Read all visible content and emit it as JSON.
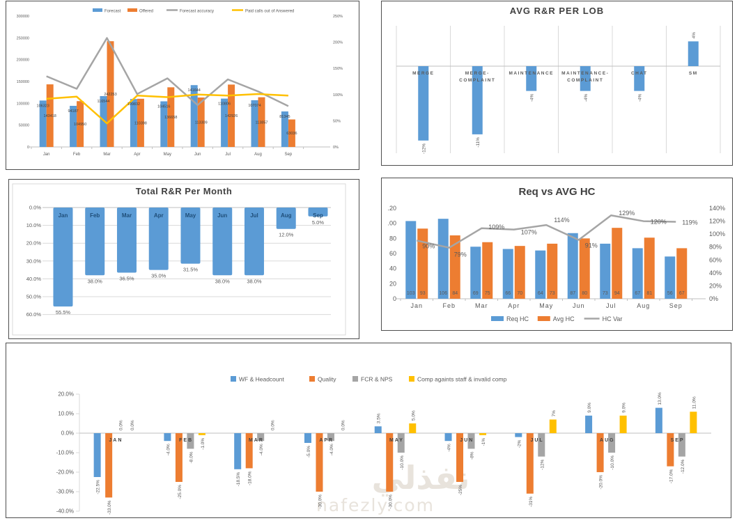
{
  "colors": {
    "blue": "#5B9BD5",
    "orange": "#ED7D31",
    "gray": "#A5A5A5",
    "yellow": "#FFC000",
    "axis_text": "#595959",
    "title_text": "#404040",
    "grid": "#D9D9D9",
    "zero_line": "#BFBFBF",
    "inner_border": "#D9D9D9",
    "month_label": "#1F4E79",
    "data_label": "#404040",
    "watermark": "#E8E3DC"
  },
  "watermark": {
    "arabic": "نفذلي",
    "latin": "nafezly.com"
  },
  "chart_data": [
    {
      "id": "forecast_offered",
      "type": "combo",
      "title": "",
      "legend_position": "top",
      "categories": [
        "Jan",
        "Feb",
        "Mar",
        "Apr",
        "May",
        "Jun",
        "Jul",
        "Aug",
        "Sep"
      ],
      "left_axis_ticks": [
        "0",
        "50000",
        "100000",
        "150000",
        "200000",
        "250000",
        "300000"
      ],
      "left_axis_max": 300000,
      "right_axis_ticks": [
        "0%",
        "50%",
        "100%",
        "150%",
        "200%",
        "250%"
      ],
      "right_axis_max": 250,
      "series": [
        {
          "name": "Forecast",
          "type": "bar",
          "color": "blue",
          "values": [
            106323,
            94187,
            116544,
            109832,
            104516,
            141644,
            110806,
            107074,
            81345
          ],
          "labels": [
            "106323",
            "94187",
            "116544",
            "109832",
            "104516",
            "141644",
            "110806",
            "107074",
            "81345"
          ]
        },
        {
          "name": "Offered",
          "type": "bar",
          "color": "orange",
          "values": [
            143418,
            104950,
            242253,
            110398,
            136658,
            113309,
            142926,
            113857,
            63036
          ],
          "labels": [
            "143418",
            "104950",
            "242253",
            "110398",
            "136658",
            "113309",
            "142926",
            "113857",
            "63036"
          ]
        },
        {
          "name": "Forecast accuracy",
          "type": "line",
          "color": "gray",
          "axis": "right",
          "values": [
            135,
            111,
            208,
            101,
            131,
            80,
            129,
            106,
            78
          ]
        },
        {
          "name": "Paid calls out of Answered",
          "type": "line",
          "color": "yellow",
          "axis": "right",
          "values": [
            92,
            96,
            45,
            98,
            95,
            100,
            98,
            101,
            98
          ]
        }
      ]
    },
    {
      "id": "avg_rr_per_lob",
      "type": "bar",
      "title": "AVG R&R PER LOB",
      "bar_color": "blue",
      "grid": "vertical",
      "ylim": [
        -14,
        7
      ],
      "categories": [
        "MERGE",
        "MERGE-COMPLAINT",
        "MAINTENANCE",
        "MAINTENANCE-COMPLAINT",
        "CHAT",
        "SM"
      ],
      "values": [
        -12,
        -11,
        -4,
        -4,
        -4,
        4
      ],
      "labels": [
        "-12%",
        "-11%",
        "-4%",
        "-4%",
        "-4%",
        "4%"
      ]
    },
    {
      "id": "total_rr_per_month",
      "type": "bar_inverted",
      "title": "Total R&R Per Month",
      "bar_color": "blue",
      "ylim": [
        0,
        60
      ],
      "y_ticks": [
        "0.0%",
        "10.0%",
        "20.0%",
        "30.0%",
        "40.0%",
        "50.0%",
        "60.0%"
      ],
      "categories": [
        "Jan",
        "Feb",
        "Mar",
        "Apr",
        "May",
        "Jun",
        "Jul",
        "Aug",
        "Sep"
      ],
      "values": [
        55.5,
        38.0,
        36.5,
        35.0,
        31.5,
        38.0,
        38.0,
        12.0,
        5.0
      ],
      "labels": [
        "55.5%",
        "38.0%",
        "36.5%",
        "35.0%",
        "31.5%",
        "38.0%",
        "38.0%",
        "12.0%",
        "5.0%"
      ]
    },
    {
      "id": "req_vs_avg_hc",
      "type": "combo",
      "title": "Req vs AVG HC",
      "legend_position": "bottom",
      "categories": [
        "Jan",
        "Feb",
        "Mar",
        "Apr",
        "May",
        "Jun",
        "Jul",
        "Aug",
        "Sep"
      ],
      "left_axis_ticks": [
        "0",
        "20",
        "40",
        "60",
        "80",
        ".00",
        ".20"
      ],
      "left_axis_max": 120,
      "right_axis_ticks": [
        "0%",
        "20%",
        "40%",
        "60%",
        "80%",
        "100%",
        "120%",
        "140%"
      ],
      "right_axis_max": 140,
      "series": [
        {
          "name": "Req HC",
          "type": "bar",
          "color": "blue",
          "values": [
            103,
            106,
            69,
            66,
            64,
            87,
            73,
            67,
            56
          ],
          "labels": [
            "103",
            "106",
            "69",
            "66",
            "64",
            "87",
            "73",
            "67",
            "56"
          ]
        },
        {
          "name": "Avg HC",
          "type": "bar",
          "color": "orange",
          "values": [
            93,
            84,
            75,
            70,
            73,
            80,
            94,
            81,
            67
          ],
          "labels": [
            "93",
            "84",
            "75",
            "70",
            "73",
            "80",
            "94",
            "81",
            "67"
          ]
        },
        {
          "name": "HC Var",
          "type": "line",
          "color": "gray",
          "axis": "right",
          "values": [
            90,
            79,
            109,
            107,
            114,
            91,
            129,
            120,
            119
          ],
          "labels": [
            "90%",
            "79%",
            "109%",
            "107%",
            "114%",
            "91%",
            "129%",
            "120%",
            "119%"
          ]
        }
      ]
    },
    {
      "id": "monthly_variance",
      "type": "grouped_bar",
      "title": "",
      "legend_position": "top",
      "ylim": [
        -40,
        20
      ],
      "y_ticks": [
        "20.0%",
        "10.0%",
        "0.0%",
        "-10.0%",
        "-20.0%",
        "-30.0%",
        "-40.0%"
      ],
      "categories": [
        "JAN",
        "FEB",
        "MAR",
        "APR",
        "MAY",
        "JUN",
        "JUL",
        "AUG",
        "SEP"
      ],
      "series": [
        {
          "name": "WF & Headcount",
          "color": "blue",
          "values": [
            -22.5,
            -4,
            -18.5,
            -5,
            3.5,
            -4,
            -2,
            9,
            13
          ],
          "labels": [
            "-22.5%",
            "-4.0%",
            "-18.5%",
            "-5.0%",
            "3.5%",
            "-4%",
            "-2%",
            "9.0%",
            "13.0%"
          ]
        },
        {
          "name": "Quality",
          "color": "orange",
          "values": [
            -33,
            -25,
            -18,
            -30,
            -30,
            -25,
            -31,
            -20,
            -17
          ],
          "labels": [
            "-33.0%",
            "-25.0%",
            "-18.0%",
            "-30.0%",
            "-30.0%",
            "-25%",
            "-31%",
            "-20.0%",
            "-17.0%"
          ]
        },
        {
          "name": "FCR & NPS",
          "color": "gray",
          "values": [
            0,
            -8,
            -4,
            -4,
            -10,
            -8,
            -12,
            -10,
            -12
          ],
          "labels": [
            "0.0%",
            "-8.0%",
            "-4.0%",
            "-4.0%",
            "-10.0%",
            "-8%",
            "-12%",
            "-10.0%",
            "-12.0%"
          ]
        },
        {
          "name": "Comp againts staff & invalid comp",
          "color": "yellow",
          "values": [
            0,
            -1,
            0,
            0,
            5,
            -1,
            7,
            9,
            11
          ],
          "labels": [
            "0.0%",
            "-1.0%",
            "0.0%",
            "0.0%",
            "5.0%",
            "-1%",
            "7%",
            "9.0%",
            "11.0%"
          ]
        }
      ]
    }
  ]
}
